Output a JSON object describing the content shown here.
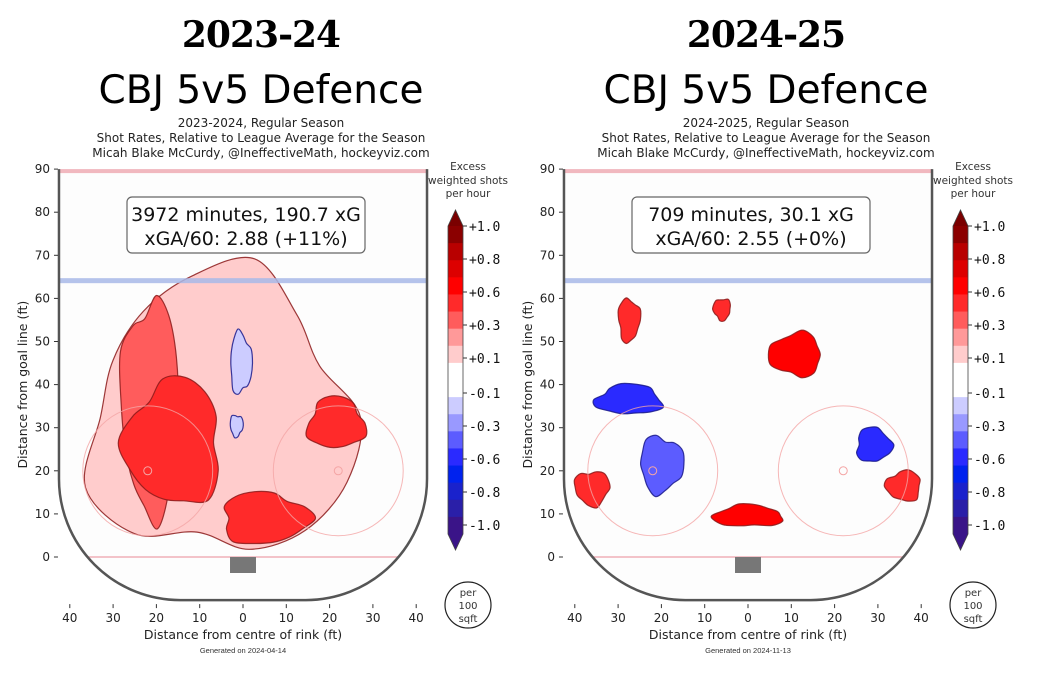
{
  "chart_data": [
    {
      "type": "heatmap",
      "season_label": "2023-24",
      "title": "CBJ 5v5 Defence",
      "subtitle_lines": [
        "2023-2024, Regular Season",
        "Shot Rates, Relative to League Average for the Season",
        "Micah Blake McCurdy, @IneffectiveMath, hockeyviz.com"
      ],
      "annotation_line1": "3972 minutes, 190.7 xG",
      "annotation_line2": "xGA/60: 2.88 (+11%)",
      "xlabel": "Distance from centre of rink (ft)",
      "ylabel": "Distance from goal line (ft)",
      "xlim": [
        -42.5,
        42.5
      ],
      "ylim": [
        -10,
        90
      ],
      "xticks": [
        "40",
        "30",
        "20",
        "10",
        "0",
        "10",
        "20",
        "30",
        "40"
      ],
      "yticks": [
        "90",
        "80",
        "70",
        "60",
        "50",
        "40",
        "30",
        "20",
        "10",
        "0"
      ],
      "colorbar_title": [
        "Excess",
        "weighted shots",
        "per hour"
      ],
      "colorbar_ticks": [
        "+1.0",
        "+0.8",
        "+0.6",
        "+0.3",
        "+0.1",
        "-0.1",
        "-0.3",
        "-0.6",
        "-0.8",
        "-1.0"
      ],
      "unit_badge": [
        "per",
        "100",
        "sqft"
      ],
      "footer": "Generated on 2024-04-14",
      "regions": [
        {
          "level": 0.1,
          "x": [
            -35,
            25
          ],
          "y": [
            0,
            65
          ],
          "note": "broad above-average band"
        },
        {
          "level": 0.3,
          "x": [
            -28,
            -15
          ],
          "y": [
            10,
            60
          ]
        },
        {
          "level": 0.5,
          "x": [
            -27,
            -5
          ],
          "y": [
            12,
            41
          ]
        },
        {
          "level": 0.5,
          "x": [
            15,
            28
          ],
          "y": [
            25,
            37
          ]
        },
        {
          "level": 0.5,
          "x": [
            -5,
            15
          ],
          "y": [
            3,
            15
          ]
        },
        {
          "level": -0.1,
          "x": [
            -3,
            2
          ],
          "y": [
            38,
            52
          ]
        },
        {
          "level": -0.1,
          "x": [
            -3,
            0
          ],
          "y": [
            28,
            33
          ]
        }
      ]
    },
    {
      "type": "heatmap",
      "season_label": "2024-25",
      "title": "CBJ 5v5 Defence",
      "subtitle_lines": [
        "2024-2025, Regular Season",
        "Shot Rates, Relative to League Average for the Season",
        "Micah Blake McCurdy, @IneffectiveMath, hockeyviz.com"
      ],
      "annotation_line1": "709 minutes, 30.1 xG",
      "annotation_line2": "xGA/60: 2.55 (+0%)",
      "xlabel": "Distance from centre of rink (ft)",
      "ylabel": "Distance from goal line (ft)",
      "xlim": [
        -42.5,
        42.5
      ],
      "ylim": [
        -10,
        90
      ],
      "xticks": [
        "40",
        "30",
        "20",
        "10",
        "0",
        "10",
        "20",
        "30",
        "40"
      ],
      "yticks": [
        "90",
        "80",
        "70",
        "60",
        "50",
        "40",
        "30",
        "20",
        "10",
        "0"
      ],
      "colorbar_title": [
        "Excess",
        "weighted shots",
        "per hour"
      ],
      "colorbar_ticks": [
        "+1.0",
        "+0.8",
        "+0.6",
        "+0.3",
        "+0.1",
        "-0.1",
        "-0.3",
        "-0.6",
        "-0.8",
        "-1.0"
      ],
      "unit_badge": [
        "per",
        "100",
        "sqft"
      ],
      "footer": "Generated on 2024-11-13",
      "regions": [
        {
          "level": 0.6,
          "x": [
            5,
            17
          ],
          "y": [
            42,
            52
          ]
        },
        {
          "level": 0.5,
          "x": [
            -30,
            -25
          ],
          "y": [
            50,
            60
          ]
        },
        {
          "level": 0.5,
          "x": [
            -8,
            -4
          ],
          "y": [
            55,
            60
          ]
        },
        {
          "level": 0.6,
          "x": [
            -8,
            8
          ],
          "y": [
            7,
            12
          ]
        },
        {
          "level": 0.4,
          "x": [
            -40,
            -32
          ],
          "y": [
            12,
            20
          ]
        },
        {
          "level": 0.4,
          "x": [
            32,
            40
          ],
          "y": [
            13,
            20
          ]
        },
        {
          "level": -0.4,
          "x": [
            -35,
            -20
          ],
          "y": [
            33,
            40
          ]
        },
        {
          "level": -0.3,
          "x": [
            -25,
            -15
          ],
          "y": [
            15,
            28
          ]
        },
        {
          "level": -0.4,
          "x": [
            25,
            33
          ],
          "y": [
            22,
            30
          ]
        }
      ]
    }
  ],
  "colors": {
    "pos": [
      "#ffcccc",
      "#ff9999",
      "#ff5c5c",
      "#ff2a2a",
      "#ff0000",
      "#dd0000",
      "#b80000",
      "#8b0000"
    ],
    "neg": [
      "#ccccff",
      "#9999ff",
      "#5c5cff",
      "#2a2aff",
      "#0022ee",
      "#1a22cc",
      "#2a1fa8",
      "#3a1488"
    ],
    "neutral": "#ffffff",
    "goal_line": "#f0b0b8",
    "blue_line": "#a8b8e8",
    "boards": "#555555",
    "net": "#777777"
  }
}
